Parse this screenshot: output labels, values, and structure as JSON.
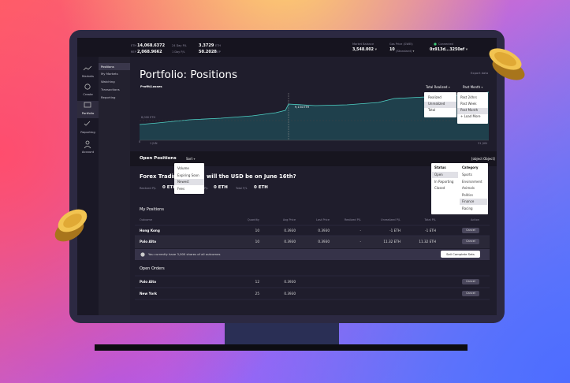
{
  "topbar": {
    "balances": [
      {
        "label": "ETH",
        "value": "14,068.6372"
      },
      {
        "label": "REP",
        "value": "2,068.9662"
      }
    ],
    "pl": [
      {
        "label": "24 Day P/L",
        "value": "3.3729",
        "unit": "ETH"
      },
      {
        "label": "1 Day P/L",
        "value": "50.2028",
        "unit": "REP"
      }
    ],
    "market_balance": {
      "label": "Market Balance",
      "value": "3,548.002"
    },
    "gas": {
      "label": "Gas Price (GWEI)",
      "value": "10",
      "note": "(Standard)"
    },
    "account": {
      "status": "Connected",
      "address": "0x913d...3250ef"
    }
  },
  "sidebar": {
    "nav": [
      "Markets",
      "Create",
      "Portfolio",
      "Reporting",
      "Account"
    ],
    "submenu": [
      "Positions",
      "My Markets",
      "Watching",
      "Transactions",
      "Reporting"
    ]
  },
  "header": {
    "title": "Portfolio: Positions",
    "export": "Export data"
  },
  "chart": {
    "title": "Profit/Losses",
    "metric": "Total Realized",
    "period": "Past Month",
    "metric_options": [
      "Realized",
      "Unrealized",
      "Total"
    ],
    "period_options": [
      "Past 24hrs",
      "Past Week",
      "Past Month",
      "+ Load More"
    ],
    "labels": {
      "upper": "8,000 ETH",
      "peak": "9,134 ETH",
      "zero": "0",
      "start": "1 JUN",
      "end": "31 JUN"
    }
  },
  "open_positions": {
    "title": "Open Positions",
    "sort": "Sort",
    "filter": {
      "status_title": "Status",
      "status": [
        "Open",
        "In Reporting",
        "Closed"
      ],
      "category_title": "Category",
      "category": [
        "Sports",
        "Environment",
        "Animals",
        "Politics",
        "Finance",
        "Racing"
      ]
    },
    "sort_options": [
      "Volume",
      "Expiring Soon",
      "Newest",
      "Fees"
    ],
    "market": {
      "title_start": "Forex Trading:",
      "title_end": "will the USD be on June 16th?",
      "realized_label": "Realized P/L",
      "realized": "0 ETH",
      "unrealized_label": "P/L",
      "unrealized": "0 ETH",
      "total_label": "Total P/L",
      "total": "0 ETH"
    }
  },
  "my_positions": {
    "title": "My Positions",
    "columns": [
      "Outcome",
      "Quantity",
      "Avg Price",
      "Last Price",
      "Realized P/L",
      "Unrealized P/L",
      "Total P/L",
      "Action"
    ],
    "rows": [
      [
        "Hong Kong",
        "10",
        "0.3930",
        "0.3930",
        "-",
        "-1 ETH",
        "-1 ETH",
        "Cancel"
      ],
      [
        "Palo Alto",
        "10",
        "0.3930",
        "0.3930",
        "-",
        "11.32 ETH",
        "11.32 ETH",
        "Cancel"
      ]
    ],
    "notice": "You currently have 3,000 shares of all outcomes",
    "notice_action": "Sell Complete Sets"
  },
  "open_orders": {
    "title": "Open Orders",
    "rows": [
      [
        "Palo Alto",
        "12",
        "0.3930",
        "Cancel"
      ],
      [
        "New York",
        "25",
        "0.3930",
        "Cancel"
      ]
    ]
  }
}
